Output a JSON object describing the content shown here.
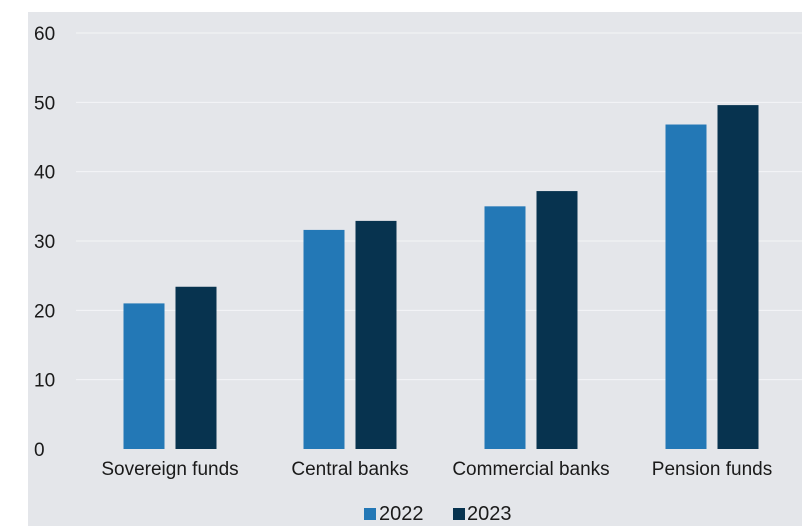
{
  "chart_data": {
    "type": "bar",
    "categories": [
      "Sovereign funds",
      "Central banks",
      "Commercial banks",
      "Pension funds"
    ],
    "series": [
      {
        "name": "2022",
        "values": [
          21,
          31.6,
          35,
          46.8
        ],
        "color": "#2378b6"
      },
      {
        "name": "2023",
        "values": [
          23.4,
          32.9,
          37.2,
          49.6
        ],
        "color": "#07334f"
      }
    ],
    "ylim": [
      0,
      60
    ],
    "yticks": [
      0,
      10,
      20,
      30,
      40,
      50,
      60
    ],
    "grid": true,
    "legend": "bottom",
    "title": "",
    "xlabel": "",
    "ylabel": ""
  }
}
